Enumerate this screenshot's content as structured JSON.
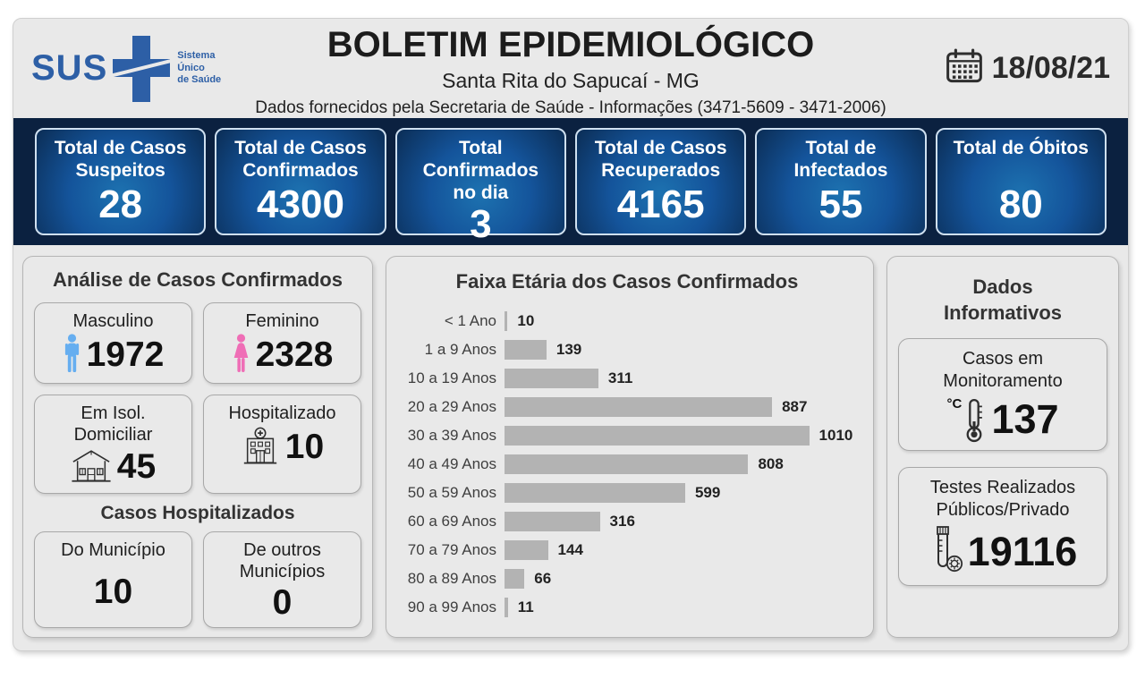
{
  "header": {
    "logo": {
      "name": "SUS",
      "tagline": "Sistema\nÚnico\nde Saúde"
    },
    "title": "BOLETIM EPIDEMIOLÓGICO",
    "subtitle": "Santa Rita do Sapucaí - MG",
    "info_line": "Dados fornecidos pela Secretaria de Saúde - Informações (3471-5609 - 3471-2006)",
    "date": "18/08/21"
  },
  "summary_cards": [
    {
      "label": "Total de Casos\nSuspeitos",
      "value": "28"
    },
    {
      "label": "Total de Casos\nConfirmados",
      "value": "4300"
    },
    {
      "label": "Total Confirmados\nno dia",
      "value": "3"
    },
    {
      "label": "Total de Casos\nRecuperados",
      "value": "4165"
    },
    {
      "label": "Total de\nInfectados",
      "value": "55"
    },
    {
      "label": "Total de Óbitos",
      "value": "80"
    }
  ],
  "analysis": {
    "title": "Análise de Casos Confirmados",
    "cards": [
      {
        "label": "Masculino",
        "value": "1972",
        "icon": "male-icon"
      },
      {
        "label": "Feminino",
        "value": "2328",
        "icon": "female-icon"
      },
      {
        "label": "Em Isol.\nDomiciliar",
        "value": "45",
        "icon": "house-icon"
      },
      {
        "label": "Hospitalizado",
        "value": "10",
        "icon": "hospital-icon"
      }
    ],
    "hospitalized": {
      "title": "Casos Hospitalizados",
      "cards": [
        {
          "label": "Do Município",
          "value": "10"
        },
        {
          "label": "De outros\nMunicípios",
          "value": "0"
        }
      ]
    }
  },
  "chart_data": {
    "type": "bar",
    "orientation": "horizontal",
    "title": "Faixa Etária dos Casos Confirmados",
    "categories": [
      "< 1 Ano",
      "1 a 9 Anos",
      "10 a 19 Anos",
      "20 a 29 Anos",
      "30 a 39 Anos",
      "40 a 49 Anos",
      "50 a 59 Anos",
      "60 a 69 Anos",
      "70 a 79 Anos",
      "80 a 89 Anos",
      "90 a 99 Anos"
    ],
    "values": [
      10,
      139,
      311,
      887,
      1010,
      808,
      599,
      316,
      144,
      66,
      11
    ],
    "xlim": [
      0,
      1010
    ],
    "data_labels": true,
    "grid": false,
    "legend": false,
    "bar_color": "#b3b3b3"
  },
  "informative": {
    "title": "Dados\nInformativos",
    "cards": [
      {
        "label": "Casos em\nMonitoramento",
        "value": "137",
        "icon": "thermometer-icon"
      },
      {
        "label": "Testes Realizados\nPúblicos/Privado",
        "value": "19116",
        "icon": "test-tube-icon"
      }
    ]
  },
  "colors": {
    "navy_bar_bg": "#0b2140",
    "card_gradient_light": "#1d72b0",
    "card_gradient_mid": "#14549b",
    "card_gradient_dark": "#0b2d55",
    "panel_bg": "#e9e9e9",
    "bar_color": "#b3b3b3",
    "male_icon": "#66aef0",
    "female_icon": "#ef6eb6",
    "sus_blue": "#2d5fa6"
  }
}
